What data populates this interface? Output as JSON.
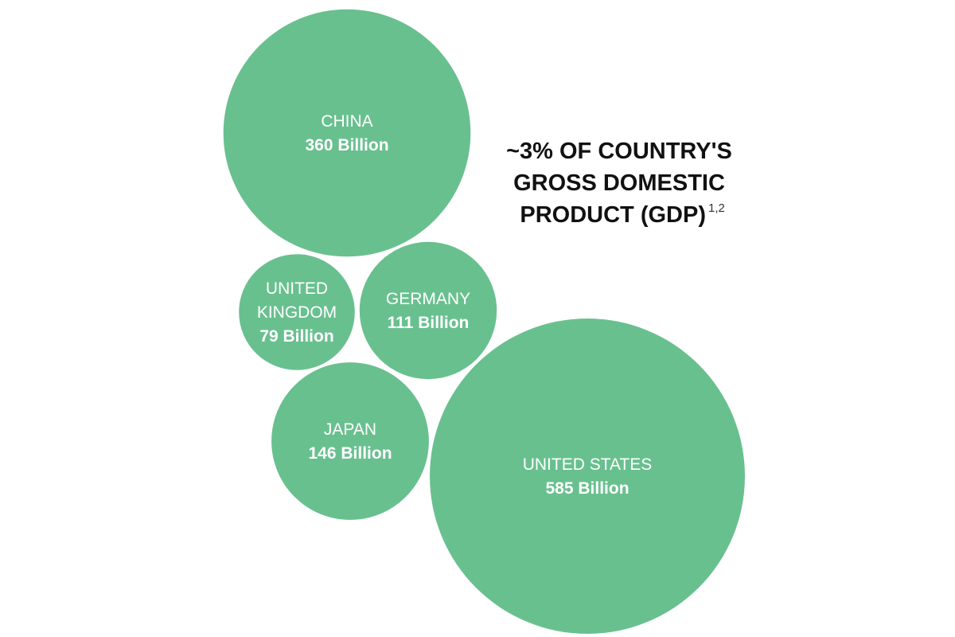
{
  "chart_data": {
    "type": "bubble",
    "title_lines": [
      "~3% OF COUNTRY'S",
      "GROSS DOMESTIC",
      "PRODUCT (GDP)"
    ],
    "title_superscript": "1,2",
    "unit": "Billion",
    "bubble_color": "#69c08f",
    "text_color": "#ffffff",
    "title_color": "#111111",
    "series": [
      {
        "name": "CHINA",
        "name_lines": [
          "CHINA"
        ],
        "value": 360,
        "value_label": "360 Billion"
      },
      {
        "name": "UNITED KINGDOM",
        "name_lines": [
          "UNITED",
          "KINGDOM"
        ],
        "value": 79,
        "value_label": "79 Billion"
      },
      {
        "name": "GERMANY",
        "name_lines": [
          "GERMANY"
        ],
        "value": 111,
        "value_label": "111 Billion"
      },
      {
        "name": "JAPAN",
        "name_lines": [
          "JAPAN"
        ],
        "value": 146,
        "value_label": "146 Billion"
      },
      {
        "name": "UNITED STATES",
        "name_lines": [
          "UNITED STATES"
        ],
        "value": 585,
        "value_label": "585 Billion"
      }
    ]
  }
}
